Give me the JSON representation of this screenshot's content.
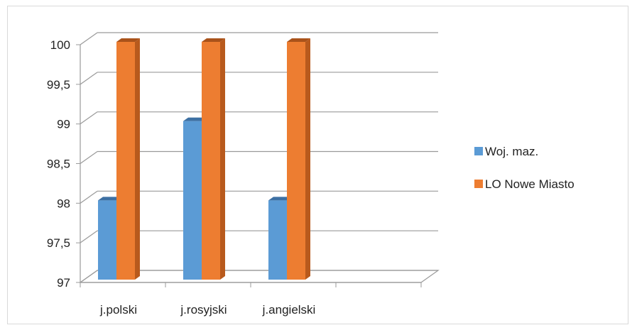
{
  "chart_data": {
    "type": "bar",
    "categories": [
      "j.polski",
      "j.rosyjski",
      "j.angielski"
    ],
    "series": [
      {
        "name": "Woj. maz.",
        "values": [
          98,
          99,
          98
        ],
        "color": "#5b9bd5",
        "side_color": "#3f79b0",
        "top_color": "#3d70a3"
      },
      {
        "name": "LO Nowe Miasto",
        "values": [
          100,
          100,
          100
        ],
        "color": "#ed7d31",
        "side_color": "#b85a1d",
        "top_color": "#a9521a"
      }
    ],
    "ylim": [
      97,
      100
    ],
    "yticks": [
      "97",
      "97,5",
      "98",
      "98,5",
      "99",
      "99,5",
      "100"
    ],
    "ytick_values": [
      97,
      97.5,
      98,
      98.5,
      99,
      99.5,
      100
    ],
    "x_slot_count": 4,
    "legend_position": "right",
    "grid": true,
    "bar_style": "3d-column"
  }
}
